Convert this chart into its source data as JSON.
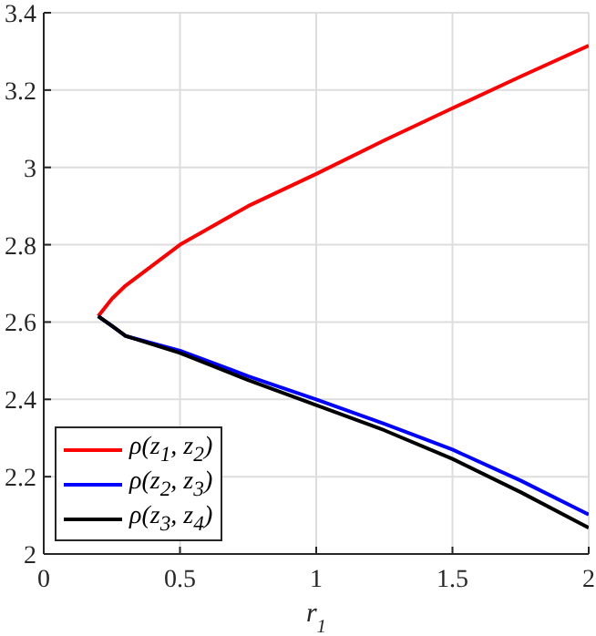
{
  "chart_data": {
    "type": "line",
    "xlabel": "r$_{1}$",
    "x": [
      0.2,
      0.25,
      0.3,
      0.5,
      0.75,
      1,
      1.25,
      1.5,
      1.75,
      2
    ],
    "series": [
      {
        "name": "ρ(z$_{1}$, z$_{2}$)",
        "color": "#ff0000",
        "values": [
          2.615,
          2.66,
          2.694,
          2.8,
          2.9,
          2.983,
          3.07,
          3.153,
          3.235,
          3.315
        ]
      },
      {
        "name": "ρ(z$_{2}$, z$_{3}$)",
        "color": "#0000ff",
        "values": [
          2.615,
          2.59,
          2.564,
          2.526,
          2.46,
          2.4,
          2.337,
          2.27,
          2.19,
          2.102
        ]
      },
      {
        "name": "ρ(z$_{3}$, z$_{4}$)",
        "color": "#000000",
        "values": [
          2.615,
          2.59,
          2.564,
          2.52,
          2.45,
          2.385,
          2.32,
          2.246,
          2.16,
          2.068
        ]
      }
    ],
    "xlim": [
      0,
      2
    ],
    "xticks": [
      0,
      0.5,
      1,
      1.5,
      2
    ],
    "ylim": [
      2,
      3.4
    ],
    "yticks": [
      2,
      2.2,
      2.4,
      2.6,
      2.8,
      3,
      3.2,
      3.4
    ],
    "grid": true,
    "legend": "bottom left",
    "marker": "none",
    "line_style": "solid"
  }
}
